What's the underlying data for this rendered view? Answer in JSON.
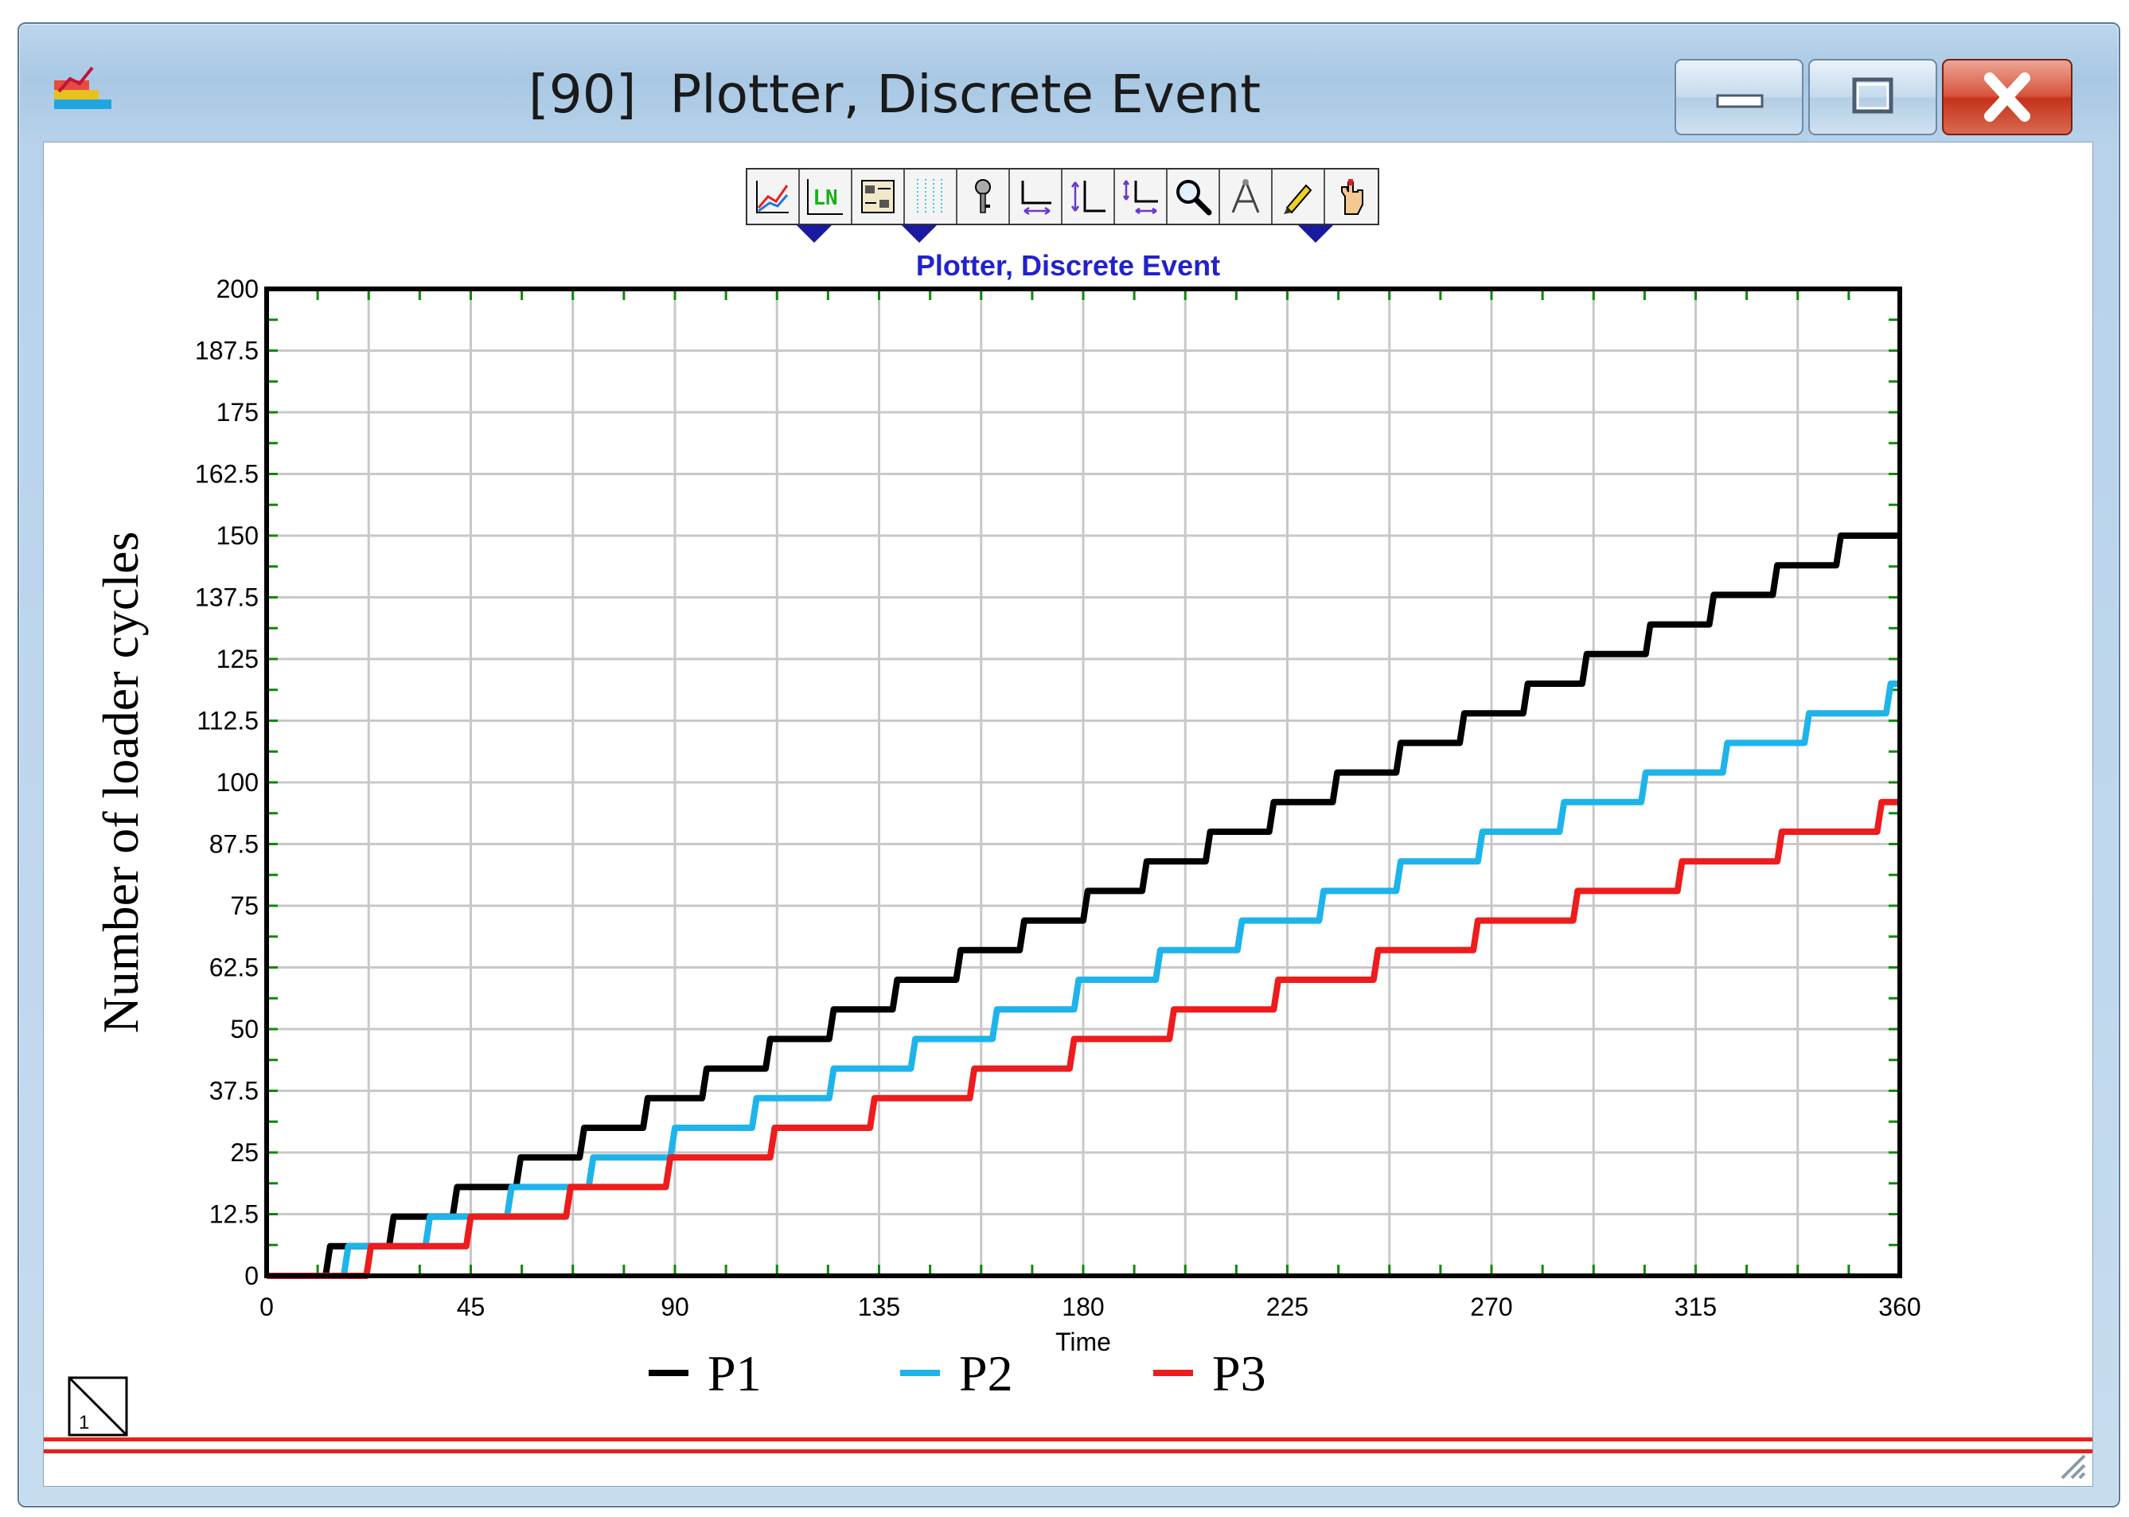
{
  "window": {
    "title": "[90]  Plotter, Discrete Event",
    "controls": {
      "minimize": "minimize",
      "maximize": "maximize",
      "close": "close"
    }
  },
  "toolbar": {
    "buttons": [
      {
        "name": "graph-type-icon"
      },
      {
        "name": "line-style-icon",
        "text": "LN"
      },
      {
        "name": "properties-icon"
      },
      {
        "name": "grid-icon"
      },
      {
        "name": "key-icon"
      },
      {
        "name": "x-axis-icon"
      },
      {
        "name": "y-axis-icon"
      },
      {
        "name": "xy-axis-icon"
      },
      {
        "name": "zoom-icon"
      },
      {
        "name": "compass-icon"
      },
      {
        "name": "pencil-icon"
      },
      {
        "name": "hand-icon"
      }
    ]
  },
  "page_tab": "1",
  "colors": {
    "P1": "#000000",
    "P2": "#1eb4ea",
    "P3": "#ee1c1c",
    "grid": "#c8c8c8",
    "tick": "#0a8a0a"
  },
  "chart_data": {
    "type": "line",
    "title": "Plotter, Discrete Event",
    "xlabel": "Time",
    "ylabel": "Number of loader cycles",
    "xlim": [
      0,
      360
    ],
    "ylim": [
      0,
      200
    ],
    "x_ticks": [
      "0",
      "45",
      "90",
      "135",
      "180",
      "225",
      "270",
      "315",
      "360"
    ],
    "y_ticks": [
      "0",
      "12.5",
      "25",
      "37.5",
      "50",
      "62.5",
      "75",
      "87.5",
      "100",
      "112.5",
      "125",
      "137.5",
      "150",
      "162.5",
      "175",
      "187.5",
      "200"
    ],
    "grid": true,
    "legend_position": "bottom",
    "series": [
      {
        "name": "P1",
        "step": 6,
        "rate": 0.433,
        "end": 156
      },
      {
        "name": "P2",
        "step": 6,
        "rate": 0.336,
        "end": 120
      },
      {
        "name": "P3",
        "step": 6,
        "rate": 0.27,
        "end": 96
      }
    ]
  }
}
